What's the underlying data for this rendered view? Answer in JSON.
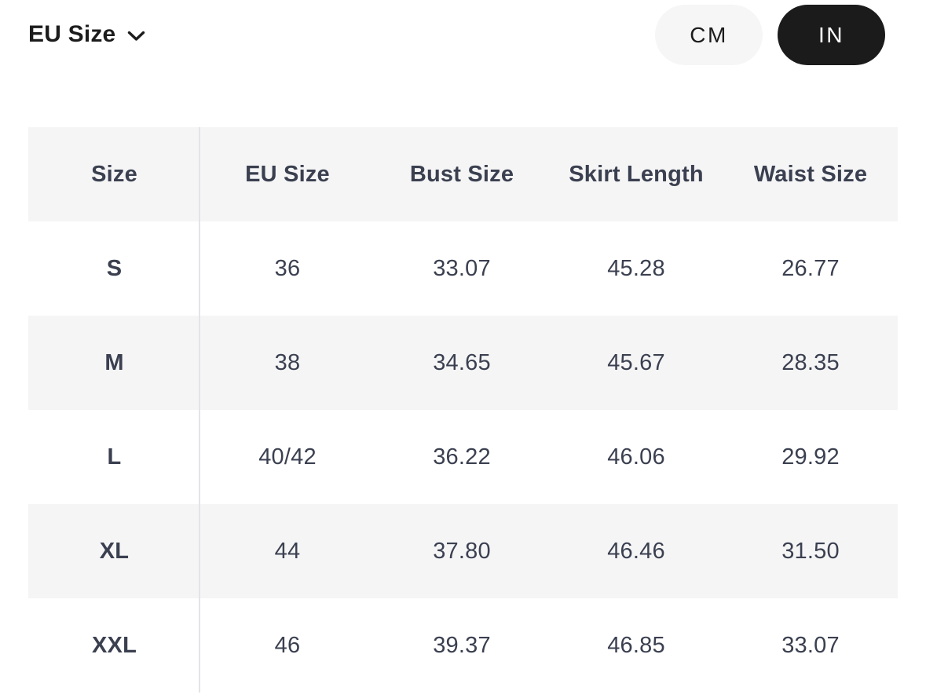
{
  "header": {
    "size_system_label": "EU Size",
    "unit_toggle": {
      "options": [
        "CM",
        "IN"
      ],
      "selected": "IN"
    }
  },
  "table": {
    "columns": [
      "Size",
      "EU Size",
      "Bust Size",
      "Skirt Length",
      "Waist Size"
    ],
    "rows": [
      [
        "S",
        "36",
        "33.07",
        "45.28",
        "26.77"
      ],
      [
        "M",
        "38",
        "34.65",
        "45.67",
        "28.35"
      ],
      [
        "L",
        "40/42",
        "36.22",
        "46.06",
        "29.92"
      ],
      [
        "XL",
        "44",
        "37.80",
        "46.46",
        "31.50"
      ],
      [
        "XXL",
        "46",
        "39.37",
        "46.85",
        "33.07"
      ]
    ]
  },
  "icons": {
    "chevron_down": "chevron-down-icon"
  },
  "colors": {
    "selected_pill_bg": "#1b1b1b",
    "selected_pill_text": "#ffffff",
    "unselected_pill_bg": "#f6f6f6",
    "stripe_bg": "#f5f5f6",
    "header_bg": "#f5f5f6",
    "table_text": "#3b4050",
    "top_label_text": "#1c1c1c",
    "column_divider": "#e4e4e6",
    "page_bg": "#ffffff"
  }
}
